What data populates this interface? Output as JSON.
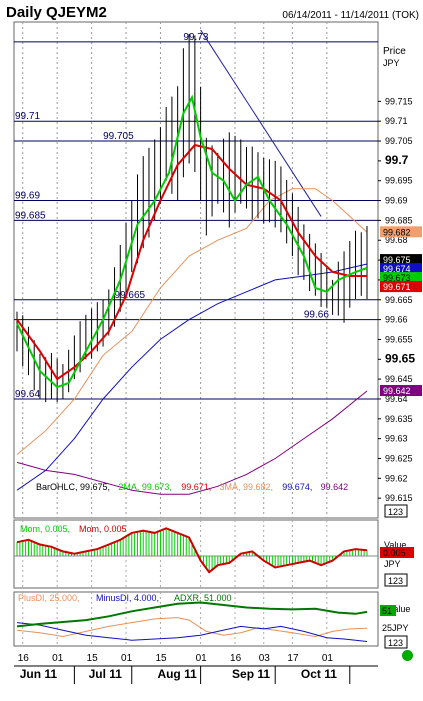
{
  "header": {
    "title": "Daily QJEYM2",
    "date_range": "06/14/2011 - 11/14/2011 (TOK)"
  },
  "colors": {
    "bars": "#000000",
    "ma2": "#00cc00",
    "ma3_red": "#dd0000",
    "ma_orange": "#e8905a",
    "ma_blue": "#1010c0",
    "ma_purple": "#800080",
    "hline": "#000060",
    "mom": "#00cc00",
    "mom_red": "#cc0000",
    "adx": "#007700"
  },
  "chart_data": [
    {
      "type": "ohlc",
      "title": "",
      "ylabel": "Price JPY",
      "ylim": [
        99.61,
        99.735
      ],
      "y_ticks": [
        "99.715",
        "99.71",
        "99.705",
        "99.7",
        "99.695",
        "99.69",
        "99.685",
        "99.68",
        "99.675",
        "99.67",
        "99.665",
        "99.66",
        "99.655",
        "99.65",
        "99.645",
        "99.64",
        "99.635",
        "99.63",
        "99.625",
        "99.62",
        "99.615"
      ],
      "y_ticks_bold": [
        "99.7",
        "99.65"
      ],
      "price_axis_title": "Price",
      "price_axis_unit": "JPY",
      "horizontal_levels": [
        {
          "value": 99.73,
          "label": "99.73"
        },
        {
          "value": 99.71,
          "label": "99.71"
        },
        {
          "value": 99.705,
          "label": "99.705"
        },
        {
          "value": 99.69,
          "label": "99.69"
        },
        {
          "value": 99.685,
          "label": "99.685"
        },
        {
          "value": 99.665,
          "label": "99.665"
        },
        {
          "value": 99.66,
          "label": "99.66"
        },
        {
          "value": 99.64,
          "label": "99.64"
        }
      ],
      "trendline": {
        "from": [
          64,
          99.733
        ],
        "to": [
          106,
          99.686
        ]
      },
      "legend": [
        {
          "text": "BarOHLC, 99.675,",
          "color": "#000000"
        },
        {
          "text": "2MA, 99.673,",
          "color": "#00cc00"
        },
        {
          "text": "99.671,",
          "color": "#dd0000"
        },
        {
          "text": "3MA, 99.682,",
          "color": "#e8905a"
        },
        {
          "text": "99.674,",
          "color": "#1010c0"
        },
        {
          "text": "99.642",
          "color": "#800080"
        }
      ],
      "price_tags": [
        {
          "value": 99.682,
          "label": "99.682",
          "bg": "#f0a070",
          "fg": "#000000"
        },
        {
          "value": 99.675,
          "label": "99.675",
          "bg": "#000000",
          "fg": "#ffffff"
        },
        {
          "value": 99.674,
          "label": "99.674",
          "bg": "#1010c0",
          "fg": "#ffffff"
        },
        {
          "value": 99.673,
          "label": "99.673",
          "bg": "#00cc00",
          "fg": "#000000"
        },
        {
          "value": 99.671,
          "label": "99.671",
          "bg": "#dd0000",
          "fg": "#ffffff"
        },
        {
          "value": 99.642,
          "label": "99.642",
          "bg": "#800080",
          "fg": "#ffffff"
        }
      ],
      "scale_box": "123",
      "bars_x_count": 123,
      "ohlc_anchor": [
        [
          0,
          99.662,
          99.652
        ],
        [
          4,
          99.657,
          99.646
        ],
        [
          8,
          99.651,
          99.64
        ],
        [
          12,
          99.65,
          99.64
        ],
        [
          16,
          99.648,
          99.64
        ],
        [
          20,
          99.656,
          99.645
        ],
        [
          24,
          99.66,
          99.65
        ],
        [
          28,
          99.664,
          99.652
        ],
        [
          32,
          99.666,
          99.656
        ],
        [
          36,
          99.678,
          99.662
        ],
        [
          40,
          99.69,
          99.672
        ],
        [
          44,
          99.7,
          99.678
        ],
        [
          48,
          99.705,
          99.685
        ],
        [
          52,
          99.712,
          99.695
        ],
        [
          56,
          99.718,
          99.69
        ],
        [
          59,
          99.733,
          99.7
        ],
        [
          62,
          99.73,
          99.698
        ],
        [
          66,
          99.705,
          99.682
        ],
        [
          70,
          99.702,
          99.69
        ],
        [
          74,
          99.706,
          99.684
        ],
        [
          78,
          99.705,
          99.69
        ],
        [
          82,
          99.702,
          99.686
        ],
        [
          86,
          99.7,
          99.685
        ],
        [
          90,
          99.7,
          99.684
        ],
        [
          94,
          99.694,
          99.68
        ],
        [
          98,
          99.688,
          99.672
        ],
        [
          102,
          99.68,
          99.668
        ],
        [
          106,
          99.676,
          99.664
        ],
        [
          110,
          99.67,
          99.662
        ],
        [
          114,
          99.676,
          99.66
        ],
        [
          118,
          99.682,
          99.666
        ],
        [
          122,
          99.682,
          99.666
        ]
      ],
      "ma2": [
        [
          0,
          99.659
        ],
        [
          8,
          99.647
        ],
        [
          14,
          99.643
        ],
        [
          18,
          99.644
        ],
        [
          24,
          99.652
        ],
        [
          30,
          99.66
        ],
        [
          36,
          99.67
        ],
        [
          42,
          99.684
        ],
        [
          48,
          99.69
        ],
        [
          53,
          99.697
        ],
        [
          58,
          99.712
        ],
        [
          61,
          99.716
        ],
        [
          64,
          99.706
        ],
        [
          68,
          99.697
        ],
        [
          72,
          99.695
        ],
        [
          76,
          99.69
        ],
        [
          80,
          99.694
        ],
        [
          84,
          99.696
        ],
        [
          88,
          99.69
        ],
        [
          94,
          99.684
        ],
        [
          100,
          99.676
        ],
        [
          104,
          99.668
        ],
        [
          108,
          99.667
        ],
        [
          112,
          99.67
        ],
        [
          118,
          99.672
        ],
        [
          122,
          99.673
        ]
      ],
      "ma3_red": [
        [
          0,
          99.66
        ],
        [
          8,
          99.652
        ],
        [
          14,
          99.645
        ],
        [
          20,
          99.648
        ],
        [
          26,
          99.652
        ],
        [
          32,
          99.657
        ],
        [
          38,
          99.666
        ],
        [
          44,
          99.68
        ],
        [
          50,
          99.69
        ],
        [
          56,
          99.699
        ],
        [
          62,
          99.704
        ],
        [
          68,
          99.703
        ],
        [
          74,
          99.698
        ],
        [
          80,
          99.694
        ],
        [
          86,
          99.693
        ],
        [
          92,
          99.69
        ],
        [
          98,
          99.682
        ],
        [
          104,
          99.676
        ],
        [
          110,
          99.672
        ],
        [
          116,
          99.671
        ],
        [
          122,
          99.671
        ]
      ],
      "ma_orange": [
        [
          0,
          99.626
        ],
        [
          10,
          99.632
        ],
        [
          20,
          99.64
        ],
        [
          30,
          99.651
        ],
        [
          40,
          99.657
        ],
        [
          50,
          99.668
        ],
        [
          60,
          99.676
        ],
        [
          70,
          99.68
        ],
        [
          80,
          99.683
        ],
        [
          88,
          99.69
        ],
        [
          96,
          99.693
        ],
        [
          104,
          99.693
        ],
        [
          110,
          99.69
        ],
        [
          116,
          99.686
        ],
        [
          122,
          99.682
        ]
      ],
      "ma_blue": [
        [
          0,
          99.617
        ],
        [
          10,
          99.622
        ],
        [
          20,
          99.63
        ],
        [
          30,
          99.64
        ],
        [
          40,
          99.648
        ],
        [
          50,
          99.655
        ],
        [
          60,
          99.66
        ],
        [
          70,
          99.664
        ],
        [
          80,
          99.667
        ],
        [
          90,
          99.67
        ],
        [
          100,
          99.671
        ],
        [
          110,
          99.672
        ],
        [
          122,
          99.674
        ]
      ],
      "ma_purple": [
        [
          0,
          99.624
        ],
        [
          10,
          99.622
        ],
        [
          20,
          99.621
        ],
        [
          30,
          99.619
        ],
        [
          40,
          99.617
        ],
        [
          50,
          99.616
        ],
        [
          60,
          99.616
        ],
        [
          70,
          99.618
        ],
        [
          80,
          99.621
        ],
        [
          90,
          99.625
        ],
        [
          100,
          99.63
        ],
        [
          110,
          99.635
        ],
        [
          122,
          99.642
        ]
      ]
    },
    {
      "type": "histogram",
      "title": "",
      "legend": [
        {
          "text": "Mom, 0.005,",
          "color": "#00cc00"
        },
        {
          "text": "Mom, 0.005",
          "color": "#cc0000"
        }
      ],
      "axis_title": "Value",
      "axis_unit": "JPY",
      "price_tag": {
        "label": "0.005",
        "bg": "#dd0000",
        "fg": "#000000"
      },
      "scale_box": "123",
      "mom_anchor": [
        [
          0,
          0.012
        ],
        [
          4,
          0.014
        ],
        [
          8,
          0.01
        ],
        [
          12,
          0.008
        ],
        [
          16,
          0.004
        ],
        [
          20,
          0.002
        ],
        [
          24,
          0.004
        ],
        [
          28,
          0.006
        ],
        [
          32,
          0.01
        ],
        [
          36,
          0.014
        ],
        [
          40,
          0.02
        ],
        [
          44,
          0.022
        ],
        [
          48,
          0.02
        ],
        [
          52,
          0.024
        ],
        [
          56,
          0.02
        ],
        [
          60,
          0.016
        ],
        [
          64,
          -0.004
        ],
        [
          67,
          -0.014
        ],
        [
          70,
          -0.008
        ],
        [
          74,
          -0.006
        ],
        [
          78,
          0.002
        ],
        [
          82,
          0.004
        ],
        [
          86,
          -0.004
        ],
        [
          90,
          -0.01
        ],
        [
          94,
          -0.008
        ],
        [
          98,
          -0.006
        ],
        [
          102,
          -0.004
        ],
        [
          106,
          -0.008
        ],
        [
          110,
          -0.004
        ],
        [
          114,
          0.004
        ],
        [
          118,
          0.006
        ],
        [
          122,
          0.005
        ]
      ]
    },
    {
      "type": "line",
      "title": "",
      "legend": [
        {
          "text": "PlusDI, 25.000,",
          "color": "#e8905a"
        },
        {
          "text": "MinusDI, 4.000,",
          "color": "#1010c0"
        },
        {
          "text": "ADXR, 51.000",
          "color": "#007700"
        }
      ],
      "axis_title": "Value",
      "axis_unit": "JPY",
      "tags": [
        {
          "label": "51",
          "bg": "#00aa00",
          "fg": "#000000"
        },
        {
          "label": "25",
          "bg": "#ffffff",
          "fg": "#000000"
        },
        {
          "label": "123",
          "bg": "#ffffff",
          "fg": "#000000"
        }
      ],
      "adxr": [
        [
          0,
          28
        ],
        [
          8,
          32
        ],
        [
          16,
          35
        ],
        [
          24,
          38
        ],
        [
          32,
          44
        ],
        [
          40,
          52
        ],
        [
          48,
          58
        ],
        [
          56,
          64
        ],
        [
          64,
          66
        ],
        [
          72,
          62
        ],
        [
          80,
          58
        ],
        [
          88,
          56
        ],
        [
          96,
          55
        ],
        [
          104,
          56
        ],
        [
          112,
          50
        ],
        [
          118,
          48
        ],
        [
          122,
          51
        ]
      ],
      "plusdi": [
        [
          0,
          22
        ],
        [
          8,
          18
        ],
        [
          16,
          12
        ],
        [
          24,
          20
        ],
        [
          32,
          28
        ],
        [
          40,
          34
        ],
        [
          48,
          40
        ],
        [
          56,
          42
        ],
        [
          60,
          38
        ],
        [
          66,
          20
        ],
        [
          72,
          14
        ],
        [
          78,
          18
        ],
        [
          84,
          26
        ],
        [
          90,
          22
        ],
        [
          96,
          18
        ],
        [
          104,
          12
        ],
        [
          110,
          20
        ],
        [
          116,
          24
        ],
        [
          122,
          25
        ]
      ],
      "minusdi": [
        [
          0,
          34
        ],
        [
          8,
          30
        ],
        [
          16,
          22
        ],
        [
          24,
          14
        ],
        [
          32,
          10
        ],
        [
          40,
          6
        ],
        [
          48,
          8
        ],
        [
          56,
          10
        ],
        [
          64,
          14
        ],
        [
          70,
          20
        ],
        [
          78,
          28
        ],
        [
          86,
          24
        ],
        [
          92,
          28
        ],
        [
          100,
          20
        ],
        [
          108,
          10
        ],
        [
          114,
          8
        ],
        [
          122,
          4
        ]
      ]
    }
  ],
  "x_axis": {
    "day_labels": [
      {
        "i": 2,
        "label": "16"
      },
      {
        "i": 14,
        "label": "01"
      },
      {
        "i": 26,
        "label": "15"
      },
      {
        "i": 38,
        "label": "01"
      },
      {
        "i": 50,
        "label": "15"
      },
      {
        "i": 64,
        "label": "01"
      },
      {
        "i": 76,
        "label": "16"
      },
      {
        "i": 86,
        "label": "03"
      },
      {
        "i": 96,
        "label": "17"
      },
      {
        "i": 108,
        "label": "01"
      }
    ],
    "month_labels": [
      {
        "i": 2,
        "label": "Jun 11"
      },
      {
        "i": 26,
        "label": "Jul 11"
      },
      {
        "i": 50,
        "label": "Aug 11"
      },
      {
        "i": 76,
        "label": "Sep 11"
      },
      {
        "i": 100,
        "label": "Oct 11"
      }
    ],
    "month_separators": [
      20,
      40,
      64,
      90,
      116
    ]
  }
}
